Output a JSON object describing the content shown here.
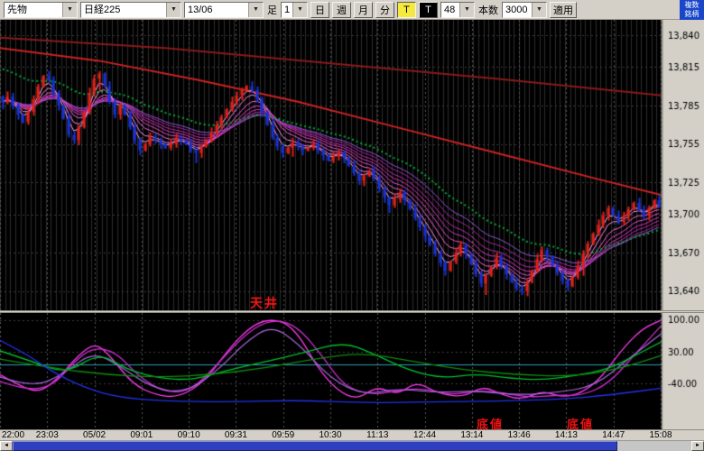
{
  "toolbar": {
    "symbol_type": "先物",
    "symbol_name": "日経225",
    "contract_month": "13/06",
    "timeframe_label": "足",
    "interval_value": "1",
    "day_label": "日",
    "week_label": "週",
    "month_label": "月",
    "minute_label": "分",
    "tick_label": "T",
    "tick_black_label": "T",
    "period_value": "48",
    "count_label": "本数",
    "count_value": "3000",
    "apply_label": "適用"
  },
  "header": {
    "multi_tab_line1": "複数",
    "multi_tab_line2": "銘柄"
  },
  "annotations": {
    "ceiling": "天井",
    "bottom_left": "底値",
    "bottom_right": "底値"
  },
  "icons": {
    "dropdown": "▼",
    "scroll_left": "◄",
    "scroll_right": "►"
  },
  "chart_data": {
    "type": "candlestick",
    "time_labels": [
      "22:00",
      "23:03",
      "05/02",
      "09:01",
      "09:10",
      "09:31",
      "09:59",
      "10:30",
      "11:13",
      "12:44",
      "13:14",
      "13:46",
      "14:13",
      "14:47",
      "15:08"
    ],
    "main": {
      "price_min": 13625,
      "price_max": 13852,
      "price_ticks": [
        13840,
        13815,
        13785,
        13755,
        13725,
        13700,
        13670,
        13640
      ],
      "price_tick_labels": [
        "13,840",
        "13,815",
        "13,785",
        "13,755",
        "13,725",
        "13,700",
        "13,670",
        "13,640"
      ],
      "up_color": "#e02018",
      "down_color": "#1830d0",
      "closes": [
        13788,
        13792,
        13785,
        13778,
        13772,
        13780,
        13790,
        13800,
        13808,
        13805,
        13795,
        13785,
        13775,
        13762,
        13758,
        13768,
        13780,
        13795,
        13806,
        13810,
        13800,
        13788,
        13778,
        13785,
        13778,
        13768,
        13758,
        13750,
        13755,
        13760,
        13758,
        13755,
        13752,
        13755,
        13760,
        13758,
        13755,
        13750,
        13748,
        13753,
        13758,
        13764,
        13770,
        13776,
        13782,
        13788,
        13793,
        13797,
        13800,
        13797,
        13790,
        13780,
        13770,
        13760,
        13753,
        13748,
        13752,
        13756,
        13753,
        13750,
        13752,
        13755,
        13750,
        13746,
        13742,
        13745,
        13748,
        13744,
        13738,
        13732,
        13726,
        13730,
        13734,
        13728,
        13720,
        13713,
        13707,
        13712,
        13717,
        13711,
        13704,
        13697,
        13690,
        13683,
        13676,
        13669,
        13662,
        13656,
        13663,
        13670,
        13676,
        13669,
        13661,
        13653,
        13646,
        13652,
        13659,
        13666,
        13660,
        13653,
        13647,
        13642,
        13640,
        13647,
        13656,
        13665,
        13672,
        13667,
        13660,
        13654,
        13648,
        13644,
        13651,
        13660,
        13669,
        13677,
        13685,
        13692,
        13699,
        13705,
        13699,
        13694,
        13699,
        13704,
        13709,
        13704,
        13699,
        13705,
        13711,
        13707
      ],
      "ema_periods": [
        3,
        5,
        8,
        11,
        14,
        17,
        21,
        25
      ],
      "ema_colors": [
        "#ffa8f4",
        "#ff85ea",
        "#fa64e0",
        "#ec4cd4",
        "#da3ac4",
        "#c32eb2",
        "#aa28a2",
        "#8f5ad8"
      ],
      "dot_ma": {
        "period": 34,
        "seed_offset": 27,
        "color": "#00a838"
      },
      "long_mas": [
        {
          "color": "#8b1a1a",
          "width": 2,
          "points": [
            [
              0,
              13838
            ],
            [
              0.25,
              13830
            ],
            [
              0.5,
              13818
            ],
            [
              0.75,
              13806
            ],
            [
              1,
              13793
            ]
          ]
        },
        {
          "color": "#cc2222",
          "width": 2,
          "points": [
            [
              0,
              13830
            ],
            [
              0.15,
              13820
            ],
            [
              0.3,
              13805
            ],
            [
              0.45,
              13788
            ],
            [
              0.6,
              13768
            ],
            [
              0.75,
              13748
            ],
            [
              0.9,
              13728
            ],
            [
              1,
              13715
            ]
          ]
        }
      ]
    },
    "indicator": {
      "min": -140,
      "max": 115,
      "ticks": [
        100,
        30,
        -40
      ],
      "tick_labels": [
        "100.00",
        "30.00",
        "-40.00"
      ],
      "hline": {
        "value": 2,
        "color": "#2aa0b0"
      },
      "series": [
        {
          "name": "osc-magenta-1",
          "color": "#ff3df0",
          "width": 1.3,
          "points": [
            [
              0,
              -20
            ],
            [
              0.03,
              -45
            ],
            [
              0.06,
              -60
            ],
            [
              0.09,
              -25
            ],
            [
              0.12,
              25
            ],
            [
              0.145,
              50
            ],
            [
              0.17,
              15
            ],
            [
              0.2,
              -40
            ],
            [
              0.235,
              -65
            ],
            [
              0.27,
              -70
            ],
            [
              0.31,
              -35
            ],
            [
              0.345,
              35
            ],
            [
              0.375,
              80
            ],
            [
              0.4,
              100
            ],
            [
              0.43,
              97
            ],
            [
              0.455,
              60
            ],
            [
              0.48,
              -5
            ],
            [
              0.51,
              -55
            ],
            [
              0.54,
              -75
            ],
            [
              0.57,
              -45
            ],
            [
              0.6,
              -65
            ],
            [
              0.63,
              -35
            ],
            [
              0.66,
              -60
            ],
            [
              0.7,
              -70
            ],
            [
              0.73,
              -45
            ],
            [
              0.76,
              -65
            ],
            [
              0.79,
              -75
            ],
            [
              0.82,
              -55
            ],
            [
              0.85,
              -70
            ],
            [
              0.88,
              -60
            ],
            [
              0.91,
              -25
            ],
            [
              0.94,
              35
            ],
            [
              0.97,
              80
            ],
            [
              1,
              100
            ]
          ]
        },
        {
          "name": "osc-magenta-2",
          "color": "#cf2fd2",
          "width": 1.3,
          "points": [
            [
              0,
              -35
            ],
            [
              0.04,
              -55
            ],
            [
              0.08,
              -45
            ],
            [
              0.11,
              5
            ],
            [
              0.14,
              40
            ],
            [
              0.175,
              30
            ],
            [
              0.21,
              -25
            ],
            [
              0.25,
              -60
            ],
            [
              0.29,
              -55
            ],
            [
              0.33,
              5
            ],
            [
              0.365,
              60
            ],
            [
              0.395,
              92
            ],
            [
              0.425,
              100
            ],
            [
              0.455,
              78
            ],
            [
              0.49,
              15
            ],
            [
              0.52,
              -45
            ],
            [
              0.56,
              -65
            ],
            [
              0.6,
              -55
            ],
            [
              0.64,
              -50
            ],
            [
              0.68,
              -65
            ],
            [
              0.72,
              -55
            ],
            [
              0.76,
              -60
            ],
            [
              0.8,
              -70
            ],
            [
              0.84,
              -65
            ],
            [
              0.88,
              -66
            ],
            [
              0.92,
              -40
            ],
            [
              0.96,
              25
            ],
            [
              1,
              88
            ]
          ]
        },
        {
          "name": "osc-violet",
          "color": "#a86ae0",
          "width": 1.2,
          "points": [
            [
              0,
              -25
            ],
            [
              0.05,
              -50
            ],
            [
              0.1,
              -15
            ],
            [
              0.14,
              30
            ],
            [
              0.18,
              0
            ],
            [
              0.23,
              -50
            ],
            [
              0.28,
              -60
            ],
            [
              0.33,
              -10
            ],
            [
              0.37,
              50
            ],
            [
              0.41,
              88
            ],
            [
              0.45,
              50
            ],
            [
              0.5,
              -30
            ],
            [
              0.55,
              -65
            ],
            [
              0.6,
              -50
            ],
            [
              0.66,
              -60
            ],
            [
              0.72,
              -55
            ],
            [
              0.78,
              -65
            ],
            [
              0.84,
              -60
            ],
            [
              0.9,
              -45
            ],
            [
              0.95,
              15
            ],
            [
              1,
              70
            ]
          ]
        },
        {
          "name": "osc-green-1",
          "color": "#00c030",
          "width": 1.3,
          "points": [
            [
              0,
              32
            ],
            [
              0.05,
              8
            ],
            [
              0.1,
              -18
            ],
            [
              0.15,
              28
            ],
            [
              0.19,
              -8
            ],
            [
              0.24,
              -28
            ],
            [
              0.29,
              -32
            ],
            [
              0.34,
              -12
            ],
            [
              0.4,
              8
            ],
            [
              0.46,
              28
            ],
            [
              0.52,
              52
            ],
            [
              0.57,
              22
            ],
            [
              0.62,
              -12
            ],
            [
              0.67,
              -28
            ],
            [
              0.72,
              -18
            ],
            [
              0.77,
              -28
            ],
            [
              0.82,
              -32
            ],
            [
              0.87,
              -22
            ],
            [
              0.92,
              -8
            ],
            [
              0.96,
              22
            ],
            [
              1,
              52
            ]
          ]
        },
        {
          "name": "osc-green-2",
          "color": "#118a11",
          "width": 1.3,
          "points": [
            [
              0,
              14
            ],
            [
              0.08,
              -6
            ],
            [
              0.16,
              -20
            ],
            [
              0.24,
              -26
            ],
            [
              0.32,
              -20
            ],
            [
              0.4,
              -6
            ],
            [
              0.48,
              16
            ],
            [
              0.55,
              28
            ],
            [
              0.62,
              10
            ],
            [
              0.7,
              -10
            ],
            [
              0.78,
              -20
            ],
            [
              0.86,
              -24
            ],
            [
              0.93,
              -10
            ],
            [
              1,
              22
            ]
          ]
        },
        {
          "name": "osc-blue",
          "color": "#2233e8",
          "width": 1.3,
          "points": [
            [
              0,
              55
            ],
            [
              0.04,
              25
            ],
            [
              0.08,
              -15
            ],
            [
              0.13,
              -50
            ],
            [
              0.18,
              -70
            ],
            [
              0.25,
              -78
            ],
            [
              0.35,
              -80
            ],
            [
              0.45,
              -76
            ],
            [
              0.55,
              -82
            ],
            [
              0.65,
              -80
            ],
            [
              0.75,
              -78
            ],
            [
              0.85,
              -74
            ],
            [
              0.92,
              -65
            ],
            [
              1,
              -50
            ]
          ]
        }
      ]
    }
  }
}
